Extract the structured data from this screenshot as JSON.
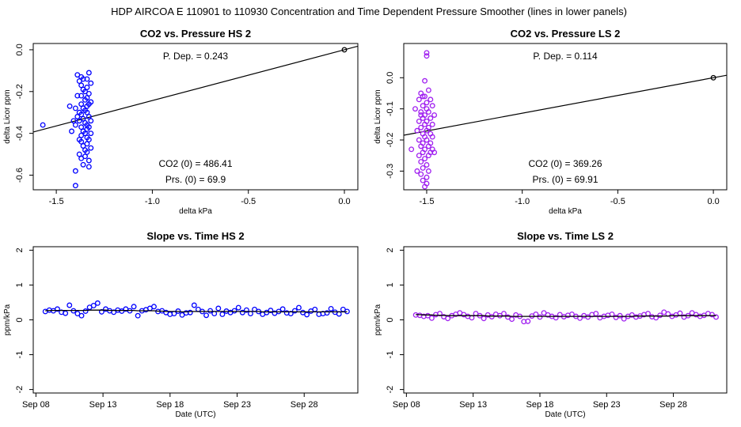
{
  "page_title": "HDP   AIRCOA E   110901 to 110930   Concentration and Time Dependent Pressure Smoother (lines in lower panels)",
  "colors": {
    "hs": "#0000ff",
    "ls": "#a020f0",
    "axis": "#000000"
  },
  "chart_data": [
    {
      "id": "co2-vs-pressure-hs",
      "type": "scatter",
      "title": "CO2 vs. Pressure HS 2",
      "xlabel": "delta kPa",
      "ylabel": "delta Licor ppm",
      "xlim": [
        -1.62,
        0.07
      ],
      "ylim": [
        -0.67,
        0.03
      ],
      "xticks": [
        -1.5,
        -1.0,
        -0.5,
        0.0
      ],
      "xtick_labels": [
        "-1.5",
        "-1.0",
        "-0.5",
        "0.0"
      ],
      "yticks": [
        0.0,
        -0.2,
        -0.4,
        -0.6
      ],
      "ytick_labels": [
        "0.0",
        "-0.2",
        "-0.4",
        "-0.6"
      ],
      "point_color": "#0000ff",
      "fit_line": {
        "slope": 0.243,
        "intercept": 0.0
      },
      "annotations": {
        "pdep": "P. Dep. =  0.243",
        "co2_0": "CO2 (0) =  486.41",
        "prs_0": "Prs. (0) =  69.9"
      },
      "anchor_point": {
        "x": 0.0,
        "y": 0.0
      },
      "points": [
        [
          -1.57,
          -0.36
        ],
        [
          -1.43,
          -0.27
        ],
        [
          -1.42,
          -0.39
        ],
        [
          -1.4,
          -0.58
        ],
        [
          -1.4,
          -0.65
        ],
        [
          -1.4,
          -0.36
        ],
        [
          -1.39,
          -0.32
        ],
        [
          -1.39,
          -0.12
        ],
        [
          -1.38,
          -0.15
        ],
        [
          -1.38,
          -0.3
        ],
        [
          -1.38,
          -0.34
        ],
        [
          -1.38,
          -0.43
        ],
        [
          -1.38,
          -0.5
        ],
        [
          -1.37,
          -0.13
        ],
        [
          -1.37,
          -0.17
        ],
        [
          -1.37,
          -0.22
        ],
        [
          -1.37,
          -0.26
        ],
        [
          -1.37,
          -0.31
        ],
        [
          -1.37,
          -0.37
        ],
        [
          -1.37,
          -0.41
        ],
        [
          -1.37,
          -0.44
        ],
        [
          -1.37,
          -0.52
        ],
        [
          -1.36,
          -0.14
        ],
        [
          -1.36,
          -0.19
        ],
        [
          -1.36,
          -0.28
        ],
        [
          -1.36,
          -0.33
        ],
        [
          -1.36,
          -0.39
        ],
        [
          -1.36,
          -0.46
        ],
        [
          -1.36,
          -0.55
        ],
        [
          -1.35,
          -0.24
        ],
        [
          -1.35,
          -0.35
        ],
        [
          -1.35,
          -0.4
        ],
        [
          -1.35,
          -0.48
        ],
        [
          -1.35,
          -0.51
        ],
        [
          -1.35,
          -0.29
        ],
        [
          -1.35,
          -0.2
        ],
        [
          -1.34,
          -0.14
        ],
        [
          -1.34,
          -0.18
        ],
        [
          -1.34,
          -0.23
        ],
        [
          -1.34,
          -0.27
        ],
        [
          -1.34,
          -0.3
        ],
        [
          -1.34,
          -0.36
        ],
        [
          -1.34,
          -0.38
        ],
        [
          -1.34,
          -0.42
        ],
        [
          -1.34,
          -0.45
        ],
        [
          -1.34,
          -0.49
        ],
        [
          -1.33,
          -0.11
        ],
        [
          -1.33,
          -0.21
        ],
        [
          -1.33,
          -0.26
        ],
        [
          -1.33,
          -0.32
        ],
        [
          -1.33,
          -0.37
        ],
        [
          -1.33,
          -0.43
        ],
        [
          -1.33,
          -0.53
        ],
        [
          -1.33,
          -0.56
        ],
        [
          -1.32,
          -0.16
        ],
        [
          -1.32,
          -0.25
        ],
        [
          -1.32,
          -0.34
        ],
        [
          -1.32,
          -0.4
        ],
        [
          -1.32,
          -0.47
        ],
        [
          -1.41,
          -0.34
        ],
        [
          -1.39,
          -0.22
        ],
        [
          -1.4,
          -0.28
        ]
      ]
    },
    {
      "id": "co2-vs-pressure-ls",
      "type": "scatter",
      "title": "CO2 vs. Pressure LS 2",
      "xlabel": "delta kPa",
      "ylabel": "delta Licor ppm",
      "xlim": [
        -1.62,
        0.07
      ],
      "ylim": [
        -0.36,
        0.11
      ],
      "xticks": [
        -1.5,
        -1.0,
        -0.5,
        0.0
      ],
      "xtick_labels": [
        "-1.5",
        "-1.0",
        "-0.5",
        "0.0"
      ],
      "yticks": [
        0.0,
        -0.1,
        -0.2,
        -0.3
      ],
      "ytick_labels": [
        "0.0",
        "-0.1",
        "-0.2",
        "-0.3"
      ],
      "point_color": "#a020f0",
      "fit_line": {
        "slope": 0.114,
        "intercept": 0.0
      },
      "annotations": {
        "pdep": "P. Dep. =  0.114",
        "co2_0": "CO2 (0) =  369.26",
        "prs_0": "Prs. (0) =  69.91"
      },
      "anchor_point": {
        "x": 0.0,
        "y": 0.0
      },
      "points": [
        [
          -1.58,
          -0.23
        ],
        [
          -1.56,
          -0.1
        ],
        [
          -1.55,
          -0.17
        ],
        [
          -1.55,
          -0.3
        ],
        [
          -1.54,
          -0.07
        ],
        [
          -1.54,
          -0.14
        ],
        [
          -1.54,
          -0.2
        ],
        [
          -1.54,
          -0.25
        ],
        [
          -1.53,
          -0.05
        ],
        [
          -1.53,
          -0.11
        ],
        [
          -1.53,
          -0.16
        ],
        [
          -1.53,
          -0.22
        ],
        [
          -1.53,
          -0.27
        ],
        [
          -1.53,
          -0.31
        ],
        [
          -1.52,
          -0.09
        ],
        [
          -1.52,
          -0.13
        ],
        [
          -1.52,
          -0.18
        ],
        [
          -1.52,
          -0.21
        ],
        [
          -1.52,
          -0.24
        ],
        [
          -1.52,
          -0.29
        ],
        [
          -1.52,
          -0.33
        ],
        [
          -1.51,
          -0.01
        ],
        [
          -1.51,
          -0.06
        ],
        [
          -1.51,
          -0.12
        ],
        [
          -1.51,
          -0.15
        ],
        [
          -1.51,
          -0.19
        ],
        [
          -1.51,
          -0.23
        ],
        [
          -1.51,
          -0.26
        ],
        [
          -1.51,
          -0.35
        ],
        [
          -1.5,
          0.08
        ],
        [
          -1.5,
          0.07
        ],
        [
          -1.5,
          -0.08
        ],
        [
          -1.5,
          -0.1
        ],
        [
          -1.5,
          -0.14
        ],
        [
          -1.5,
          -0.17
        ],
        [
          -1.5,
          -0.2
        ],
        [
          -1.5,
          -0.28
        ],
        [
          -1.5,
          -0.34
        ],
        [
          -1.49,
          -0.04
        ],
        [
          -1.49,
          -0.11
        ],
        [
          -1.49,
          -0.16
        ],
        [
          -1.49,
          -0.22
        ],
        [
          -1.49,
          -0.25
        ],
        [
          -1.49,
          -0.3
        ],
        [
          -1.48,
          -0.07
        ],
        [
          -1.48,
          -0.13
        ],
        [
          -1.48,
          -0.18
        ],
        [
          -1.48,
          -0.21
        ],
        [
          -1.48,
          -0.24
        ],
        [
          -1.47,
          -0.15
        ],
        [
          -1.47,
          -0.19
        ],
        [
          -1.47,
          -0.23
        ],
        [
          -1.46,
          -0.12
        ],
        [
          -1.46,
          -0.24
        ],
        [
          -1.47,
          -0.09
        ],
        [
          -1.53,
          -0.12
        ],
        [
          -1.52,
          -0.06
        ],
        [
          -1.5,
          -0.32
        ]
      ]
    },
    {
      "id": "slope-vs-time-hs",
      "type": "line",
      "title": "Slope vs. Time HS 2",
      "xlabel": "Date (UTC)",
      "ylabel": "ppm/kPa",
      "xlim": [
        7.8,
        32.0
      ],
      "ylim": [
        -2.1,
        2.1
      ],
      "xticks": [
        8,
        13,
        18,
        23,
        28
      ],
      "xtick_labels": [
        "Sep 08",
        "Sep 13",
        "Sep 18",
        "Sep 23",
        "Sep 28"
      ],
      "yticks": [
        2,
        1,
        0,
        -1,
        -2
      ],
      "ytick_labels": [
        "2",
        "1",
        "0",
        "-1",
        "-2"
      ],
      "point_color": "#0000ff",
      "x": [
        8.7,
        9.0,
        9.3,
        9.6,
        9.9,
        10.2,
        10.5,
        10.8,
        11.1,
        11.4,
        11.7,
        12.0,
        12.3,
        12.6,
        12.9,
        13.2,
        13.5,
        13.8,
        14.1,
        14.4,
        14.7,
        15.0,
        15.3,
        15.6,
        15.9,
        16.2,
        16.5,
        16.8,
        17.1,
        17.4,
        17.7,
        18.0,
        18.3,
        18.6,
        18.9,
        19.2,
        19.5,
        19.8,
        20.1,
        20.4,
        20.7,
        21.0,
        21.3,
        21.6,
        21.9,
        22.2,
        22.5,
        22.8,
        23.1,
        23.4,
        23.7,
        24.0,
        24.3,
        24.6,
        24.9,
        25.2,
        25.5,
        25.8,
        26.1,
        26.4,
        26.7,
        27.0,
        27.3,
        27.6,
        27.9,
        28.2,
        28.5,
        28.8,
        29.1,
        29.4,
        29.7,
        30.0,
        30.3,
        30.6,
        30.9,
        31.2
      ],
      "points_y": [
        0.24,
        0.28,
        0.26,
        0.31,
        0.22,
        0.19,
        0.42,
        0.26,
        0.18,
        0.12,
        0.25,
        0.36,
        0.41,
        0.48,
        0.23,
        0.31,
        0.26,
        0.22,
        0.28,
        0.25,
        0.31,
        0.26,
        0.38,
        0.12,
        0.26,
        0.29,
        0.33,
        0.38,
        0.24,
        0.26,
        0.21,
        0.16,
        0.18,
        0.25,
        0.14,
        0.2,
        0.21,
        0.42,
        0.3,
        0.24,
        0.13,
        0.26,
        0.18,
        0.33,
        0.16,
        0.25,
        0.21,
        0.26,
        0.35,
        0.21,
        0.28,
        0.18,
        0.3,
        0.24,
        0.16,
        0.21,
        0.27,
        0.19,
        0.24,
        0.31,
        0.2,
        0.18,
        0.26,
        0.35,
        0.21,
        0.15,
        0.25,
        0.3,
        0.16,
        0.18,
        0.2,
        0.32,
        0.22,
        0.17,
        0.3,
        0.24
      ],
      "smoother_y": [
        0.26,
        0.27,
        0.27,
        0.27,
        0.27,
        0.27,
        0.27,
        0.27,
        0.27,
        0.27,
        0.27,
        0.28,
        0.28,
        0.28,
        0.28,
        0.28,
        0.27,
        0.27,
        0.27,
        0.27,
        0.27,
        0.27,
        0.27,
        0.26,
        0.26,
        0.26,
        0.26,
        0.26,
        0.25,
        0.25,
        0.24,
        0.24,
        0.24,
        0.24,
        0.23,
        0.23,
        0.24,
        0.24,
        0.24,
        0.24,
        0.24,
        0.24,
        0.24,
        0.24,
        0.24,
        0.24,
        0.24,
        0.24,
        0.24,
        0.24,
        0.24,
        0.24,
        0.24,
        0.24,
        0.23,
        0.23,
        0.23,
        0.23,
        0.23,
        0.23,
        0.23,
        0.23,
        0.23,
        0.23,
        0.23,
        0.23,
        0.23,
        0.23,
        0.23,
        0.23,
        0.23,
        0.23,
        0.23,
        0.23,
        0.23,
        0.23
      ]
    },
    {
      "id": "slope-vs-time-ls",
      "type": "line",
      "title": "Slope vs. Time LS 2",
      "xlabel": "Date (UTC)",
      "ylabel": "ppm/kPa",
      "xlim": [
        7.8,
        32.0
      ],
      "ylim": [
        -2.1,
        2.1
      ],
      "xticks": [
        8,
        13,
        18,
        23,
        28
      ],
      "xtick_labels": [
        "Sep 08",
        "Sep 13",
        "Sep 18",
        "Sep 23",
        "Sep 28"
      ],
      "yticks": [
        2,
        1,
        0,
        -1,
        -2
      ],
      "ytick_labels": [
        "2",
        "1",
        "0",
        "-1",
        "-2"
      ],
      "point_color": "#a020f0",
      "x": [
        8.7,
        9.0,
        9.3,
        9.6,
        9.9,
        10.2,
        10.5,
        10.8,
        11.1,
        11.4,
        11.7,
        12.0,
        12.3,
        12.6,
        12.9,
        13.2,
        13.5,
        13.8,
        14.1,
        14.4,
        14.7,
        15.0,
        15.3,
        15.6,
        15.9,
        16.2,
        16.5,
        16.8,
        17.1,
        17.4,
        17.7,
        18.0,
        18.3,
        18.6,
        18.9,
        19.2,
        19.5,
        19.8,
        20.1,
        20.4,
        20.7,
        21.0,
        21.3,
        21.6,
        21.9,
        22.2,
        22.5,
        22.8,
        23.1,
        23.4,
        23.7,
        24.0,
        24.3,
        24.6,
        24.9,
        25.2,
        25.5,
        25.8,
        26.1,
        26.4,
        26.7,
        27.0,
        27.3,
        27.6,
        27.9,
        28.2,
        28.5,
        28.8,
        29.1,
        29.4,
        29.7,
        30.0,
        30.3,
        30.6,
        30.9,
        31.2
      ],
      "points_y": [
        0.14,
        0.13,
        0.1,
        0.12,
        0.05,
        0.15,
        0.18,
        0.09,
        0.04,
        0.12,
        0.16,
        0.2,
        0.15,
        0.1,
        0.06,
        0.18,
        0.12,
        0.04,
        0.14,
        0.09,
        0.16,
        0.12,
        0.18,
        0.08,
        0.02,
        0.14,
        0.1,
        -0.05,
        -0.04,
        0.11,
        0.16,
        0.08,
        0.2,
        0.14,
        0.1,
        0.06,
        0.15,
        0.09,
        0.13,
        0.16,
        0.1,
        0.05,
        0.12,
        0.08,
        0.15,
        0.18,
        0.06,
        0.1,
        0.13,
        0.16,
        0.07,
        0.12,
        0.03,
        0.1,
        0.14,
        0.08,
        0.11,
        0.15,
        0.18,
        0.09,
        0.06,
        0.13,
        0.22,
        0.17,
        0.1,
        0.14,
        0.19,
        0.08,
        0.12,
        0.2,
        0.15,
        0.1,
        0.13,
        0.18,
        0.15,
        0.08
      ],
      "smoother_y": [
        0.15,
        0.15,
        0.14,
        0.14,
        0.14,
        0.13,
        0.13,
        0.13,
        0.12,
        0.12,
        0.12,
        0.12,
        0.12,
        0.12,
        0.12,
        0.12,
        0.12,
        0.12,
        0.11,
        0.11,
        0.11,
        0.11,
        0.11,
        0.11,
        0.1,
        0.1,
        0.1,
        0.1,
        0.1,
        0.1,
        0.1,
        0.1,
        0.1,
        0.1,
        0.1,
        0.1,
        0.1,
        0.1,
        0.1,
        0.1,
        0.1,
        0.1,
        0.1,
        0.1,
        0.1,
        0.1,
        0.1,
        0.1,
        0.1,
        0.1,
        0.1,
        0.1,
        0.1,
        0.1,
        0.1,
        0.11,
        0.11,
        0.11,
        0.11,
        0.11,
        0.11,
        0.11,
        0.11,
        0.11,
        0.12,
        0.12,
        0.12,
        0.12,
        0.12,
        0.12,
        0.12,
        0.12,
        0.12,
        0.12,
        0.12,
        0.12
      ]
    }
  ]
}
